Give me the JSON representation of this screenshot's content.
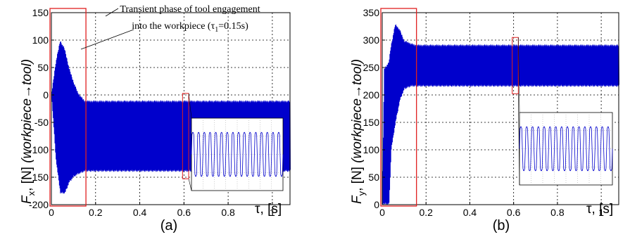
{
  "chart_data": [
    {
      "type": "line",
      "panel_label": "(a)",
      "ylabel_symbol": "F",
      "ylabel_sub": "x",
      "ylabel_units": ", [N]",
      "ylabel_paren": "(workpiece→tool)",
      "xlabel": "τ, [s]",
      "xlim": [
        0,
        1.08
      ],
      "ylim": [
        -200,
        150
      ],
      "xticks": [
        "0",
        "0.2",
        "0.4",
        "0.6",
        "0.8",
        "1"
      ],
      "xtick_values": [
        0,
        0.2,
        0.4,
        0.6,
        0.8,
        1.0
      ],
      "yticks": [
        "150",
        "100",
        "50",
        "0",
        "-50",
        "-100",
        "-150",
        "-200"
      ],
      "ytick_values": [
        150,
        100,
        50,
        0,
        -50,
        -100,
        -150,
        -200
      ],
      "grid": true,
      "series": [
        {
          "color": "#0000cc",
          "envelope_points": [
            {
              "t": 0.0,
              "max": 0,
              "min": 0
            },
            {
              "t": 0.02,
              "max": 60,
              "min": -120
            },
            {
              "t": 0.04,
              "max": 100,
              "min": -180
            },
            {
              "t": 0.06,
              "max": 85,
              "min": -180
            },
            {
              "t": 0.08,
              "max": 50,
              "min": -160
            },
            {
              "t": 0.1,
              "max": 25,
              "min": -150
            },
            {
              "t": 0.12,
              "max": 5,
              "min": -145
            },
            {
              "t": 0.15,
              "max": -10,
              "min": -140
            },
            {
              "t": 1.08,
              "max": -10,
              "min": -140
            }
          ]
        }
      ],
      "annotation": {
        "line1": "Transient phase of tool engagement",
        "line2_prefix": "into the workpiece (τ",
        "line2_sub": "1",
        "line2_suffix": "=0.15s)"
      },
      "highlight_ranges": [
        [
          0,
          0.15
        ],
        [
          0.6,
          0.615
        ]
      ],
      "inset": {
        "x_from": 0.6,
        "x_to": 0.615,
        "ymax": -10,
        "ymin": -140
      }
    },
    {
      "type": "line",
      "panel_label": "(b)",
      "ylabel_symbol": "F",
      "ylabel_sub": "y",
      "ylabel_units": ", [N]",
      "ylabel_paren": "(workpiece→tool)",
      "xlabel": "τ, [s]",
      "xlim": [
        0,
        1.08
      ],
      "ylim": [
        0,
        350
      ],
      "xticks": [
        "0",
        "0.2",
        "0.4",
        "0.6",
        "0.8",
        "1"
      ],
      "xtick_values": [
        0,
        0.2,
        0.4,
        0.6,
        0.8,
        1.0
      ],
      "yticks": [
        "350",
        "300",
        "250",
        "200",
        "150",
        "100",
        "50",
        "0"
      ],
      "ytick_values": [
        350,
        300,
        250,
        200,
        150,
        100,
        50,
        0
      ],
      "grid": true,
      "series": [
        {
          "color": "#0000cc",
          "envelope_points": [
            {
              "t": 0.0,
              "max": 0,
              "min": 0
            },
            {
              "t": 0.01,
              "max": 250,
              "min": 0
            },
            {
              "t": 0.03,
              "max": 260,
              "min": 0
            },
            {
              "t": 0.04,
              "max": 290,
              "min": 100
            },
            {
              "t": 0.06,
              "max": 330,
              "min": 150
            },
            {
              "t": 0.08,
              "max": 320,
              "min": 190
            },
            {
              "t": 0.1,
              "max": 300,
              "min": 210
            },
            {
              "t": 0.13,
              "max": 295,
              "min": 215
            },
            {
              "t": 0.15,
              "max": 292,
              "min": 215
            },
            {
              "t": 1.08,
              "max": 292,
              "min": 215
            }
          ]
        }
      ],
      "highlight_ranges": [
        [
          0,
          0.15
        ],
        [
          0.6,
          0.615
        ]
      ],
      "inset": {
        "x_from": 0.6,
        "x_to": 0.615,
        "ymax": 292,
        "ymin": 215
      }
    }
  ]
}
